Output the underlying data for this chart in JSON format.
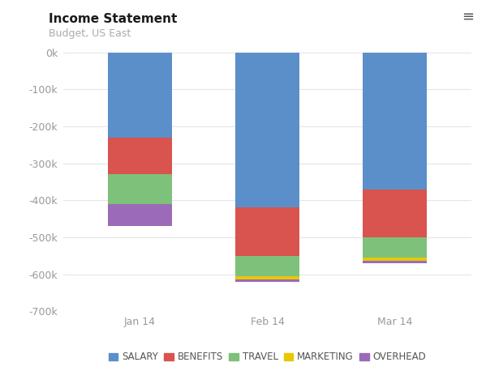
{
  "title": "Income Statement",
  "subtitle": "Budget, US East",
  "categories": [
    "Jan 14",
    "Feb 14",
    "Mar 14"
  ],
  "series": {
    "SALARY": [
      -230000,
      -420000,
      -370000
    ],
    "BENEFITS": [
      -100000,
      -130000,
      -130000
    ],
    "TRAVEL": [
      -80000,
      -55000,
      -55000
    ],
    "MARKETING": [
      0,
      -8000,
      -8000
    ],
    "OVERHEAD": [
      -60000,
      -8000,
      -8000
    ]
  },
  "colors": {
    "SALARY": "#5b8fc9",
    "BENEFITS": "#d9534f",
    "TRAVEL": "#7dc17a",
    "MARKETING": "#e8c800",
    "OVERHEAD": "#9b6ab8"
  },
  "stack_order": [
    "SALARY",
    "BENEFITS",
    "TRAVEL",
    "MARKETING",
    "OVERHEAD"
  ],
  "ylim": [
    -700000,
    20000
  ],
  "yticks": [
    0,
    -100000,
    -200000,
    -300000,
    -400000,
    -500000,
    -600000,
    -700000
  ],
  "ytick_labels": [
    "0k",
    "-100k",
    "-200k",
    "-300k",
    "-400k",
    "-500k",
    "-600k",
    "-700k"
  ],
  "background_color": "#ffffff",
  "grid_color": "#e5e5e5",
  "title_fontsize": 11,
  "subtitle_fontsize": 9,
  "legend_fontsize": 8.5,
  "tick_fontsize": 9
}
